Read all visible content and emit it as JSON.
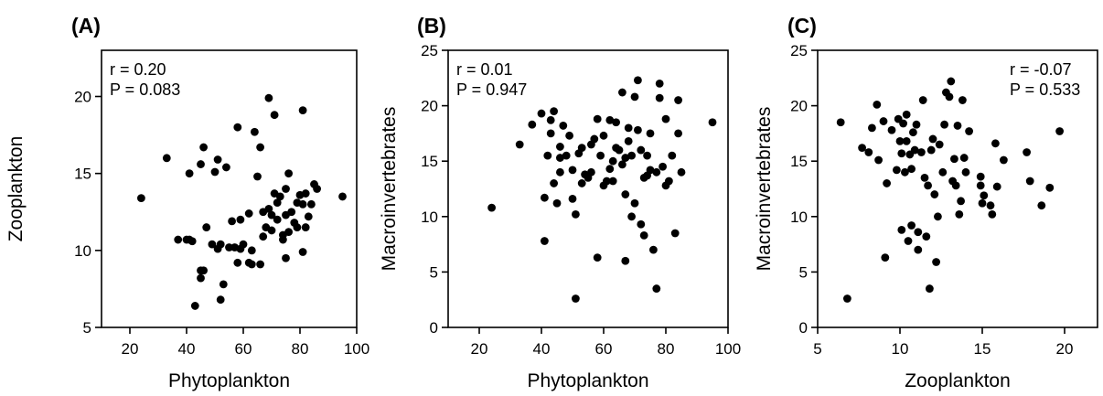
{
  "chart_data": [
    {
      "type": "scatter",
      "panel_label": "(A)",
      "xlabel": "Phytoplankton",
      "ylabel": "Zooplankton",
      "xlim": [
        10,
        100
      ],
      "ylim": [
        5,
        23
      ],
      "xticks": [
        20,
        40,
        60,
        80,
        100
      ],
      "yticks": [
        5,
        10,
        15,
        20
      ],
      "stats": [
        "r = 0.20",
        "P = 0.083"
      ],
      "stats_position": "top-left",
      "points": [
        [
          24,
          13.4
        ],
        [
          33,
          16.0
        ],
        [
          37,
          10.7
        ],
        [
          40,
          10.7
        ],
        [
          41,
          15.0
        ],
        [
          41,
          10.7
        ],
        [
          42,
          10.6
        ],
        [
          43,
          6.4
        ],
        [
          45,
          15.6
        ],
        [
          45,
          8.7
        ],
        [
          45,
          8.2
        ],
        [
          46,
          16.7
        ],
        [
          46,
          8.7
        ],
        [
          47,
          11.5
        ],
        [
          49,
          10.4
        ],
        [
          50,
          15.1
        ],
        [
          51,
          10.1
        ],
        [
          51,
          15.9
        ],
        [
          52,
          6.8
        ],
        [
          52,
          10.4
        ],
        [
          53,
          7.8
        ],
        [
          54,
          15.4
        ],
        [
          55,
          10.2
        ],
        [
          56,
          11.9
        ],
        [
          57,
          10.2
        ],
        [
          58,
          18.0
        ],
        [
          58,
          9.2
        ],
        [
          59,
          10.1
        ],
        [
          59,
          12.0
        ],
        [
          60,
          10.4
        ],
        [
          62,
          9.2
        ],
        [
          62,
          12.4
        ],
        [
          63,
          9.1
        ],
        [
          63,
          10.0
        ],
        [
          64,
          17.7
        ],
        [
          65,
          14.8
        ],
        [
          66,
          16.7
        ],
        [
          66,
          9.1
        ],
        [
          67,
          12.5
        ],
        [
          67,
          10.9
        ],
        [
          68,
          11.5
        ],
        [
          69,
          19.9
        ],
        [
          69,
          12.7
        ],
        [
          70,
          12.3
        ],
        [
          70,
          11.3
        ],
        [
          71,
          13.7
        ],
        [
          71,
          18.8
        ],
        [
          72,
          13.1
        ],
        [
          72,
          12.0
        ],
        [
          73,
          13.5
        ],
        [
          74,
          10.7
        ],
        [
          74,
          11.0
        ],
        [
          75,
          14.0
        ],
        [
          75,
          9.5
        ],
        [
          75,
          12.3
        ],
        [
          76,
          15.0
        ],
        [
          76,
          11.2
        ],
        [
          77,
          12.5
        ],
        [
          78,
          11.8
        ],
        [
          79,
          13.1
        ],
        [
          79,
          11.5
        ],
        [
          80,
          13.6
        ],
        [
          81,
          19.1
        ],
        [
          81,
          9.9
        ],
        [
          81,
          13.0
        ],
        [
          82,
          13.7
        ],
        [
          82,
          11.5
        ],
        [
          83,
          12.2
        ],
        [
          84,
          13.0
        ],
        [
          85,
          14.3
        ],
        [
          86,
          14.0
        ],
        [
          95,
          13.5
        ]
      ]
    },
    {
      "type": "scatter",
      "panel_label": "(B)",
      "xlabel": "Phytoplankton",
      "ylabel": "Macroinvertebrates",
      "xlim": [
        10,
        100
      ],
      "ylim": [
        0,
        25
      ],
      "xticks": [
        20,
        40,
        60,
        80,
        100
      ],
      "yticks": [
        0,
        5,
        10,
        15,
        20,
        25
      ],
      "stats": [
        "r = 0.01",
        "P = 0.947"
      ],
      "stats_position": "top-left",
      "points": [
        [
          24,
          10.8
        ],
        [
          33,
          16.5
        ],
        [
          37,
          18.3
        ],
        [
          40,
          19.3
        ],
        [
          41,
          11.7
        ],
        [
          41,
          7.8
        ],
        [
          42,
          15.5
        ],
        [
          43,
          17.5
        ],
        [
          43,
          18.7
        ],
        [
          44,
          13.0
        ],
        [
          44,
          19.5
        ],
        [
          45,
          11.2
        ],
        [
          46,
          15.3
        ],
        [
          46,
          16.3
        ],
        [
          46,
          14.0
        ],
        [
          47,
          18.2
        ],
        [
          48,
          15.5
        ],
        [
          49,
          17.3
        ],
        [
          50,
          11.6
        ],
        [
          50,
          14.2
        ],
        [
          51,
          10.2
        ],
        [
          51,
          2.6
        ],
        [
          52,
          15.7
        ],
        [
          53,
          16.2
        ],
        [
          53,
          13.0
        ],
        [
          54,
          13.8
        ],
        [
          55,
          13.5
        ],
        [
          56,
          14.0
        ],
        [
          56,
          16.5
        ],
        [
          57,
          17.0
        ],
        [
          58,
          6.3
        ],
        [
          58,
          18.8
        ],
        [
          59,
          15.5
        ],
        [
          60,
          12.8
        ],
        [
          60,
          17.3
        ],
        [
          61,
          13.2
        ],
        [
          62,
          18.7
        ],
        [
          62,
          14.3
        ],
        [
          63,
          15.0
        ],
        [
          63,
          13.2
        ],
        [
          64,
          16.2
        ],
        [
          64,
          18.5
        ],
        [
          65,
          16.0
        ],
        [
          66,
          21.2
        ],
        [
          66,
          14.7
        ],
        [
          67,
          6.0
        ],
        [
          67,
          15.3
        ],
        [
          67,
          12.0
        ],
        [
          68,
          18.0
        ],
        [
          68,
          16.8
        ],
        [
          69,
          10.0
        ],
        [
          69,
          15.5
        ],
        [
          70,
          11.2
        ],
        [
          70,
          20.8
        ],
        [
          71,
          22.3
        ],
        [
          71,
          17.8
        ],
        [
          72,
          16.0
        ],
        [
          72,
          9.3
        ],
        [
          73,
          13.5
        ],
        [
          73,
          8.3
        ],
        [
          74,
          13.7
        ],
        [
          74,
          15.5
        ],
        [
          75,
          17.5
        ],
        [
          75,
          14.2
        ],
        [
          76,
          7.0
        ],
        [
          77,
          3.5
        ],
        [
          77,
          14.0
        ],
        [
          78,
          22.0
        ],
        [
          78,
          20.7
        ],
        [
          79,
          14.5
        ],
        [
          80,
          12.8
        ],
        [
          80,
          18.8
        ],
        [
          81,
          13.2
        ],
        [
          82,
          15.5
        ],
        [
          83,
          8.5
        ],
        [
          84,
          17.5
        ],
        [
          84,
          20.5
        ],
        [
          85,
          14.0
        ],
        [
          95,
          18.5
        ]
      ]
    },
    {
      "type": "scatter",
      "panel_label": "(C)",
      "xlabel": "Zooplankton",
      "ylabel": "Macroinvertebrates",
      "xlim": [
        5,
        22
      ],
      "ylim": [
        0,
        25
      ],
      "xticks": [
        5,
        10,
        15,
        20
      ],
      "yticks": [
        0,
        5,
        10,
        15,
        20,
        25
      ],
      "stats": [
        "r = -0.07",
        "P = 0.533"
      ],
      "stats_position": "top-right",
      "points": [
        [
          6.4,
          18.5
        ],
        [
          6.8,
          2.6
        ],
        [
          7.7,
          16.2
        ],
        [
          8.1,
          15.8
        ],
        [
          8.3,
          18.0
        ],
        [
          8.6,
          20.1
        ],
        [
          8.7,
          15.1
        ],
        [
          9.0,
          18.6
        ],
        [
          9.1,
          6.3
        ],
        [
          9.2,
          13.0
        ],
        [
          9.5,
          17.8
        ],
        [
          9.8,
          14.2
        ],
        [
          9.9,
          18.8
        ],
        [
          10.0,
          16.8
        ],
        [
          10.1,
          15.7
        ],
        [
          10.1,
          8.8
        ],
        [
          10.2,
          18.4
        ],
        [
          10.3,
          14.0
        ],
        [
          10.4,
          19.2
        ],
        [
          10.4,
          16.8
        ],
        [
          10.5,
          7.8
        ],
        [
          10.6,
          15.6
        ],
        [
          10.7,
          14.3
        ],
        [
          10.7,
          9.2
        ],
        [
          10.8,
          17.6
        ],
        [
          10.9,
          16.0
        ],
        [
          11.0,
          18.3
        ],
        [
          11.1,
          8.6
        ],
        [
          11.1,
          7.0
        ],
        [
          11.3,
          15.8
        ],
        [
          11.4,
          20.5
        ],
        [
          11.5,
          13.5
        ],
        [
          11.6,
          8.2
        ],
        [
          11.7,
          12.8
        ],
        [
          11.8,
          3.5
        ],
        [
          11.9,
          16.0
        ],
        [
          12.0,
          17.0
        ],
        [
          12.1,
          12.0
        ],
        [
          12.2,
          5.9
        ],
        [
          12.3,
          10.0
        ],
        [
          12.4,
          16.5
        ],
        [
          12.6,
          14.0
        ],
        [
          12.7,
          18.3
        ],
        [
          12.8,
          21.2
        ],
        [
          13.0,
          20.8
        ],
        [
          13.1,
          22.2
        ],
        [
          13.2,
          13.2
        ],
        [
          13.3,
          15.2
        ],
        [
          13.4,
          12.8
        ],
        [
          13.5,
          18.2
        ],
        [
          13.6,
          10.2
        ],
        [
          13.7,
          11.4
        ],
        [
          13.8,
          20.5
        ],
        [
          13.9,
          15.3
        ],
        [
          14.0,
          14.0
        ],
        [
          14.2,
          17.7
        ],
        [
          14.9,
          13.6
        ],
        [
          14.9,
          12.8
        ],
        [
          15.0,
          11.2
        ],
        [
          15.1,
          11.9
        ],
        [
          15.5,
          11.0
        ],
        [
          15.6,
          10.2
        ],
        [
          15.8,
          16.6
        ],
        [
          15.9,
          12.7
        ],
        [
          16.3,
          15.1
        ],
        [
          17.7,
          15.8
        ],
        [
          17.9,
          13.2
        ],
        [
          18.6,
          11.0
        ],
        [
          19.1,
          12.6
        ],
        [
          19.7,
          17.7
        ]
      ]
    }
  ]
}
